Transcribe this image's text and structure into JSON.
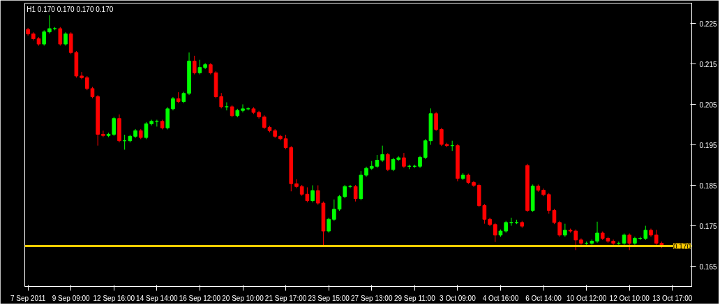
{
  "chart_data": {
    "type": "candlestick",
    "title": "H1  0.170 0.170 0.170 0.170",
    "categories": [
      "7 Sep 2011",
      null,
      null,
      null,
      null,
      null,
      null,
      null,
      "9 Sep 09:00",
      null,
      null,
      null,
      null,
      null,
      null,
      null,
      "12 Sep 16:00",
      null,
      null,
      null,
      null,
      null,
      null,
      null,
      "14 Sep 14:00",
      null,
      null,
      null,
      null,
      null,
      null,
      null,
      "16 Sep 12:00",
      null,
      null,
      null,
      null,
      null,
      null,
      null,
      "20 Sep 10:00",
      null,
      null,
      null,
      null,
      null,
      null,
      null,
      "21 Sep 17:00",
      null,
      null,
      null,
      null,
      null,
      null,
      null,
      "23 Sep 15:00",
      null,
      null,
      null,
      null,
      null,
      null,
      null,
      "27 Sep 13:00",
      null,
      null,
      null,
      null,
      null,
      null,
      null,
      "29 Sep 11:00",
      null,
      null,
      null,
      null,
      null,
      null,
      null,
      "3 Oct 09:00",
      null,
      null,
      null,
      null,
      null,
      null,
      null,
      "4 Oct 16:00",
      null,
      null,
      null,
      null,
      null,
      null,
      null,
      "6 Oct 14:00",
      null,
      null,
      null,
      null,
      null,
      null,
      null,
      "10 Oct 12:00",
      null,
      null,
      null,
      null,
      null,
      null,
      null,
      "12 Oct 10:00",
      null,
      null,
      null,
      null,
      null,
      null,
      null,
      "13 Oct 17:00",
      null,
      null,
      null
    ],
    "ohlc": [
      [
        0.2235,
        0.2239,
        0.222,
        0.2224
      ],
      [
        0.2224,
        0.2228,
        0.2208,
        0.2212
      ],
      [
        0.2212,
        0.2216,
        0.2195,
        0.2199
      ],
      [
        0.2199,
        0.2233,
        0.2195,
        0.2229
      ],
      [
        0.2229,
        0.227,
        0.2225,
        0.2237
      ],
      [
        0.2237,
        0.2241,
        0.2233,
        0.2237
      ],
      [
        0.2237,
        0.2241,
        0.2195,
        0.2199
      ],
      [
        0.2199,
        0.2228,
        0.2195,
        0.2224
      ],
      [
        0.2224,
        0.2228,
        0.2174,
        0.2178
      ],
      [
        0.2178,
        0.2182,
        0.2116,
        0.212
      ],
      [
        0.212,
        0.213,
        0.2112,
        0.2116
      ],
      [
        0.2116,
        0.212,
        0.2085,
        0.2089
      ],
      [
        0.2089,
        0.2093,
        0.2065,
        0.2069
      ],
      [
        0.2069,
        0.2073,
        0.1948,
        0.1976
      ],
      [
        0.1976,
        0.1985,
        0.1969,
        0.1973
      ],
      [
        0.1973,
        0.198,
        0.1969,
        0.1976
      ],
      [
        0.1976,
        0.2019,
        0.1972,
        0.2015
      ],
      [
        0.2015,
        0.2025,
        0.1956,
        0.196
      ],
      [
        0.196,
        0.1975,
        0.1938,
        0.196
      ],
      [
        0.196,
        0.1975,
        0.1956,
        0.1971
      ],
      [
        0.1971,
        0.1989,
        0.1967,
        0.1985
      ],
      [
        0.1985,
        0.1989,
        0.1964,
        0.1968
      ],
      [
        0.1968,
        0.2006,
        0.1964,
        0.2002
      ],
      [
        0.2002,
        0.2012,
        0.1998,
        0.2008
      ],
      [
        0.2008,
        0.2012,
        0.1995,
        0.2008
      ],
      [
        0.2008,
        0.2012,
        0.1988,
        0.1992
      ],
      [
        0.1992,
        0.2043,
        0.1988,
        0.2039
      ],
      [
        0.2039,
        0.2068,
        0.2035,
        0.2064
      ],
      [
        0.2064,
        0.208,
        0.2053,
        0.2057
      ],
      [
        0.2057,
        0.2081,
        0.2053,
        0.2077
      ],
      [
        0.2077,
        0.2178,
        0.2073,
        0.2157
      ],
      [
        0.2157,
        0.217,
        0.2124,
        0.2128
      ],
      [
        0.2128,
        0.216,
        0.2124,
        0.2141
      ],
      [
        0.2141,
        0.2152,
        0.2137,
        0.2148
      ],
      [
        0.2148,
        0.2152,
        0.2124,
        0.2128
      ],
      [
        0.2128,
        0.2132,
        0.2065,
        0.2069
      ],
      [
        0.2069,
        0.2078,
        0.204,
        0.2044
      ],
      [
        0.2044,
        0.2055,
        0.2035,
        0.2044
      ],
      [
        0.2044,
        0.2048,
        0.2018,
        0.2022
      ],
      [
        0.2022,
        0.2039,
        0.2018,
        0.2035
      ],
      [
        0.2035,
        0.205,
        0.203,
        0.2039
      ],
      [
        0.2039,
        0.2043,
        0.2035,
        0.2039
      ],
      [
        0.2039,
        0.2043,
        0.2026,
        0.203
      ],
      [
        0.203,
        0.2034,
        0.2015,
        0.2019
      ],
      [
        0.2019,
        0.2023,
        0.1989,
        0.1993
      ],
      [
        0.1993,
        0.1997,
        0.1981,
        0.1985
      ],
      [
        0.1985,
        0.1989,
        0.1967,
        0.1971
      ],
      [
        0.1971,
        0.1975,
        0.1961,
        0.1965
      ],
      [
        0.1965,
        0.1975,
        0.1939,
        0.1943
      ],
      [
        0.1943,
        0.1947,
        0.1835,
        0.1854
      ],
      [
        0.1854,
        0.1865,
        0.1843,
        0.1847
      ],
      [
        0.1847,
        0.1851,
        0.1824,
        0.1828
      ],
      [
        0.1828,
        0.1845,
        0.1808,
        0.1812
      ],
      [
        0.1812,
        0.185,
        0.1808,
        0.1837
      ],
      [
        0.1837,
        0.185,
        0.1802,
        0.1806
      ],
      [
        0.1806,
        0.181,
        0.1702,
        0.1737
      ],
      [
        0.1737,
        0.177,
        0.1733,
        0.1766
      ],
      [
        0.1766,
        0.1815,
        0.1762,
        0.1791
      ],
      [
        0.1791,
        0.1826,
        0.1787,
        0.1822
      ],
      [
        0.1822,
        0.1851,
        0.1818,
        0.1847
      ],
      [
        0.1847,
        0.1851,
        0.1843,
        0.1847
      ],
      [
        0.1847,
        0.1851,
        0.181,
        0.1817
      ],
      [
        0.1817,
        0.1885,
        0.1813,
        0.1875
      ],
      [
        0.1875,
        0.1896,
        0.1871,
        0.1892
      ],
      [
        0.1892,
        0.191,
        0.1888,
        0.1897
      ],
      [
        0.1897,
        0.1925,
        0.1893,
        0.1912
      ],
      [
        0.1912,
        0.1948,
        0.1908,
        0.1926
      ],
      [
        0.1926,
        0.193,
        0.1885,
        0.1889
      ],
      [
        0.1889,
        0.1918,
        0.1885,
        0.1914
      ],
      [
        0.1914,
        0.1922,
        0.191,
        0.1918
      ],
      [
        0.1918,
        0.193,
        0.1893,
        0.1897
      ],
      [
        0.1897,
        0.1901,
        0.189,
        0.1897
      ],
      [
        0.1897,
        0.1901,
        0.1893,
        0.1897
      ],
      [
        0.1897,
        0.1923,
        0.1893,
        0.1919
      ],
      [
        0.1919,
        0.1964,
        0.1915,
        0.196
      ],
      [
        0.196,
        0.204,
        0.195,
        0.2027
      ],
      [
        0.2027,
        0.2031,
        0.1984,
        0.1988
      ],
      [
        0.1988,
        0.1992,
        0.1947,
        0.1951
      ],
      [
        0.1951,
        0.1955,
        0.1944,
        0.1948
      ],
      [
        0.1948,
        0.196,
        0.1935,
        0.1948
      ],
      [
        0.1948,
        0.1952,
        0.186,
        0.1867
      ],
      [
        0.1867,
        0.188,
        0.1863,
        0.1875
      ],
      [
        0.1875,
        0.1879,
        0.1853,
        0.1857
      ],
      [
        0.1857,
        0.1861,
        0.1846,
        0.185
      ],
      [
        0.185,
        0.1854,
        0.1796,
        0.18
      ],
      [
        0.18,
        0.1804,
        0.1755,
        0.1766
      ],
      [
        0.1766,
        0.177,
        0.1749,
        0.1753
      ],
      [
        0.1753,
        0.1757,
        0.171,
        0.1727
      ],
      [
        0.1727,
        0.1741,
        0.1723,
        0.1737
      ],
      [
        0.1737,
        0.1762,
        0.1733,
        0.1758
      ],
      [
        0.1758,
        0.177,
        0.175,
        0.1758
      ],
      [
        0.1758,
        0.1765,
        0.1754,
        0.1758
      ],
      [
        0.1758,
        0.1762,
        0.1745,
        0.1749
      ],
      [
        0.1899,
        0.1903,
        0.1784,
        0.1788
      ],
      [
        0.1788,
        0.1852,
        0.1784,
        0.1848
      ],
      [
        0.1848,
        0.1852,
        0.1834,
        0.1838
      ],
      [
        0.1838,
        0.1842,
        0.1823,
        0.1827
      ],
      [
        0.1827,
        0.1831,
        0.178,
        0.1788
      ],
      [
        0.1788,
        0.1792,
        0.1754,
        0.1758
      ],
      [
        0.1758,
        0.1762,
        0.1723,
        0.1727
      ],
      [
        0.1727,
        0.1755,
        0.1723,
        0.1739
      ],
      [
        0.1739,
        0.1743,
        0.1733,
        0.1737
      ],
      [
        0.1737,
        0.1741,
        0.169,
        0.1715
      ],
      [
        0.1715,
        0.1719,
        0.1703,
        0.1707
      ],
      [
        0.1707,
        0.1711,
        0.1703,
        0.1707
      ],
      [
        0.1707,
        0.1716,
        0.1703,
        0.1712
      ],
      [
        0.1712,
        0.176,
        0.1708,
        0.1732
      ],
      [
        0.1732,
        0.1736,
        0.1715,
        0.1719
      ],
      [
        0.1719,
        0.1723,
        0.1708,
        0.1712
      ],
      [
        0.1712,
        0.1716,
        0.1703,
        0.1707
      ],
      [
        0.1707,
        0.1711,
        0.1703,
        0.1707
      ],
      [
        0.1707,
        0.1731,
        0.1703,
        0.1727
      ],
      [
        0.1727,
        0.1731,
        0.169,
        0.1707
      ],
      [
        0.1707,
        0.1723,
        0.1703,
        0.1719
      ],
      [
        0.1719,
        0.1723,
        0.1715,
        0.1719
      ],
      [
        0.1719,
        0.175,
        0.1715,
        0.1739
      ],
      [
        0.1739,
        0.1743,
        0.1723,
        0.1727
      ],
      [
        0.1727,
        0.174,
        0.1703,
        0.1707
      ],
      [
        0.1707,
        0.1711,
        0.1695,
        0.1699
      ],
      null,
      null,
      null,
      null,
      null
    ],
    "ylim": [
      0.16,
      0.23
    ],
    "yticks": [
      0.165,
      0.175,
      0.185,
      0.195,
      0.205,
      0.215,
      0.225
    ],
    "grid": false,
    "ref_lines": [
      {
        "axis": "y",
        "value": 0.17,
        "label": "0.170",
        "color": "#ffcc00",
        "line_style": "solid"
      }
    ]
  }
}
